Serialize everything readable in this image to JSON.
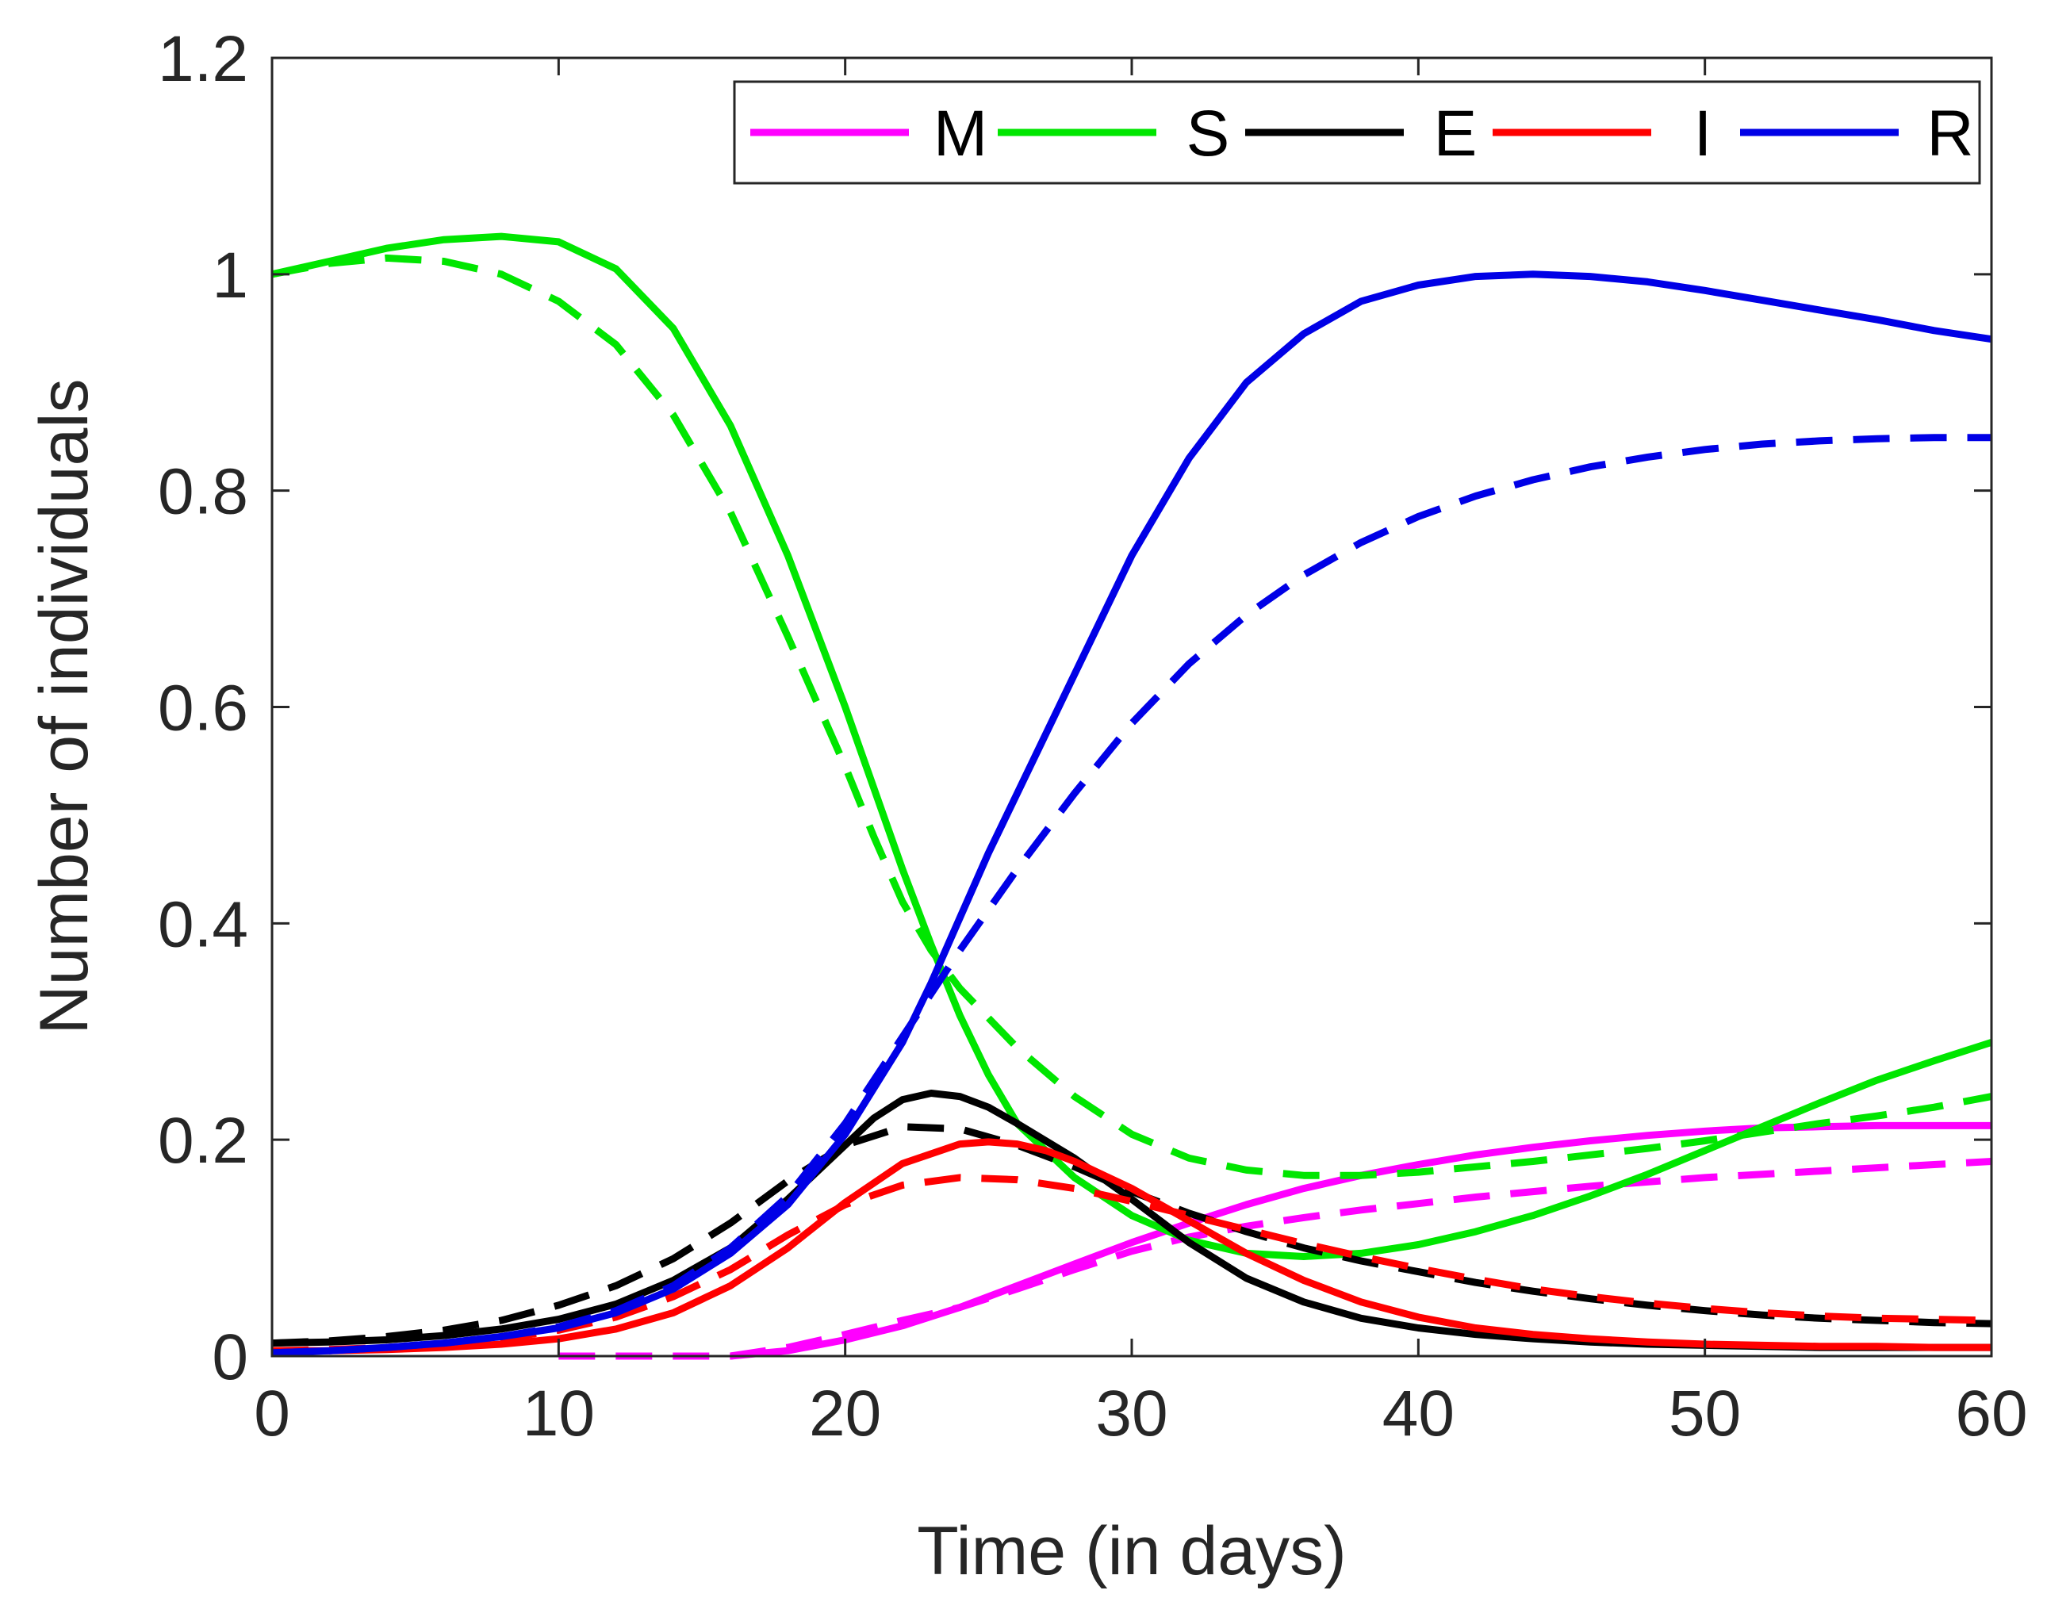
{
  "chart_data": {
    "type": "line",
    "title": "",
    "xlabel": "Time (in days)",
    "ylabel": "Number of individuals",
    "xlim": [
      0,
      60
    ],
    "ylim": [
      0,
      1.2
    ],
    "xticks": [
      0,
      10,
      20,
      30,
      40,
      50,
      60
    ],
    "yticks": [
      0,
      0.2,
      0.4,
      0.6,
      0.8,
      1,
      1.2
    ],
    "xtick_labels": [
      "0",
      "10",
      "20",
      "30",
      "40",
      "50",
      "60"
    ],
    "ytick_labels": [
      "0",
      "0.2",
      "0.4",
      "0.6",
      "0.8",
      "1",
      "1.2"
    ],
    "grid": false,
    "legend_position": "top-right",
    "legend": [
      "M",
      "S",
      "E",
      "I",
      "R"
    ],
    "series": [
      {
        "name": "M",
        "style": "solid",
        "color": "#ff00ff",
        "x": [
          16,
          18,
          20,
          22,
          24,
          26,
          28,
          30,
          32,
          34,
          36,
          38,
          40,
          42,
          44,
          46,
          48,
          50,
          52,
          54,
          56,
          58,
          60
        ],
        "y": [
          0,
          0.005,
          0.015,
          0.028,
          0.045,
          0.065,
          0.085,
          0.105,
          0.123,
          0.14,
          0.155,
          0.167,
          0.177,
          0.186,
          0.193,
          0.199,
          0.204,
          0.208,
          0.211,
          0.212,
          0.213,
          0.213,
          0.213
        ]
      },
      {
        "name": "M",
        "style": "dashed",
        "color": "#ff00ff",
        "x": [
          10,
          12,
          14,
          16,
          18,
          20,
          22,
          24,
          26,
          28,
          30,
          32,
          34,
          36,
          38,
          40,
          42,
          44,
          46,
          48,
          50,
          52,
          54,
          56,
          58,
          60
        ],
        "y": [
          0,
          0,
          0,
          0,
          0.008,
          0.02,
          0.033,
          0.045,
          0.062,
          0.08,
          0.097,
          0.11,
          0.12,
          0.128,
          0.135,
          0.141,
          0.147,
          0.152,
          0.157,
          0.161,
          0.165,
          0.168,
          0.171,
          0.174,
          0.177,
          0.18
        ]
      },
      {
        "name": "S",
        "style": "solid",
        "color": "#00e600",
        "x": [
          0,
          2,
          4,
          6,
          8,
          10,
          12,
          14,
          16,
          18,
          20,
          21,
          22,
          23,
          24,
          25,
          26,
          28,
          30,
          32,
          34,
          36,
          38,
          40,
          42,
          44,
          46,
          48,
          50,
          52,
          54,
          56,
          58,
          60
        ],
        "y": [
          1.0,
          1.012,
          1.024,
          1.032,
          1.035,
          1.03,
          1.005,
          0.95,
          0.86,
          0.74,
          0.6,
          0.525,
          0.45,
          0.38,
          0.315,
          0.26,
          0.215,
          0.165,
          0.13,
          0.107,
          0.095,
          0.092,
          0.095,
          0.103,
          0.115,
          0.13,
          0.148,
          0.168,
          0.19,
          0.212,
          0.234,
          0.255,
          0.273,
          0.29
        ]
      },
      {
        "name": "S",
        "style": "dashed",
        "color": "#00e600",
        "x": [
          0,
          2,
          4,
          6,
          8,
          10,
          12,
          14,
          16,
          18,
          20,
          21,
          22,
          23,
          24,
          26,
          28,
          30,
          32,
          34,
          36,
          38,
          40,
          42,
          44,
          46,
          48,
          50,
          52,
          54,
          56,
          58,
          60
        ],
        "y": [
          1.0,
          1.01,
          1.015,
          1.012,
          1.0,
          0.975,
          0.935,
          0.87,
          0.78,
          0.665,
          0.545,
          0.48,
          0.42,
          0.375,
          0.34,
          0.285,
          0.24,
          0.205,
          0.183,
          0.172,
          0.167,
          0.167,
          0.17,
          0.175,
          0.18,
          0.186,
          0.192,
          0.199,
          0.207,
          0.215,
          0.222,
          0.23,
          0.24
        ]
      },
      {
        "name": "E",
        "style": "solid",
        "color": "#000000",
        "x": [
          0,
          2,
          4,
          6,
          8,
          10,
          12,
          14,
          16,
          18,
          20,
          21,
          22,
          23,
          24,
          25,
          26,
          28,
          30,
          32,
          34,
          36,
          38,
          40,
          42,
          44,
          46,
          48,
          50,
          52,
          54,
          56,
          58,
          60
        ],
        "y": [
          0.012,
          0.013,
          0.015,
          0.019,
          0.025,
          0.034,
          0.048,
          0.07,
          0.1,
          0.145,
          0.195,
          0.22,
          0.237,
          0.243,
          0.24,
          0.23,
          0.215,
          0.183,
          0.145,
          0.105,
          0.072,
          0.05,
          0.035,
          0.026,
          0.02,
          0.016,
          0.013,
          0.011,
          0.01,
          0.009,
          0.008,
          0.008,
          0.008,
          0.008
        ]
      },
      {
        "name": "E",
        "style": "dashed",
        "color": "#000000",
        "x": [
          0,
          2,
          4,
          6,
          8,
          10,
          12,
          14,
          16,
          18,
          20,
          22,
          24,
          26,
          28,
          30,
          32,
          34,
          36,
          38,
          40,
          42,
          44,
          46,
          48,
          50,
          52,
          54,
          56,
          58,
          60
        ],
        "y": [
          0.012,
          0.014,
          0.018,
          0.024,
          0.033,
          0.047,
          0.065,
          0.09,
          0.123,
          0.162,
          0.195,
          0.212,
          0.21,
          0.195,
          0.175,
          0.152,
          0.132,
          0.115,
          0.1,
          0.088,
          0.078,
          0.068,
          0.06,
          0.053,
          0.047,
          0.042,
          0.038,
          0.035,
          0.033,
          0.031,
          0.03
        ]
      },
      {
        "name": "I",
        "style": "solid",
        "color": "#ff0000",
        "x": [
          0,
          2,
          4,
          6,
          8,
          10,
          12,
          14,
          16,
          18,
          20,
          22,
          24,
          25,
          26,
          27,
          28,
          30,
          32,
          34,
          36,
          38,
          40,
          42,
          44,
          46,
          48,
          50,
          52,
          54,
          56,
          58,
          60
        ],
        "y": [
          0.005,
          0.005,
          0.006,
          0.008,
          0.011,
          0.016,
          0.025,
          0.04,
          0.065,
          0.1,
          0.142,
          0.178,
          0.196,
          0.198,
          0.196,
          0.19,
          0.18,
          0.155,
          0.125,
          0.095,
          0.07,
          0.05,
          0.036,
          0.026,
          0.02,
          0.016,
          0.013,
          0.011,
          0.01,
          0.009,
          0.009,
          0.008,
          0.008
        ]
      },
      {
        "name": "I",
        "style": "dashed",
        "color": "#ff0000",
        "x": [
          0,
          2,
          4,
          6,
          8,
          10,
          12,
          14,
          16,
          18,
          20,
          22,
          24,
          26,
          28,
          30,
          32,
          34,
          36,
          38,
          40,
          42,
          44,
          46,
          48,
          50,
          52,
          54,
          56,
          58,
          60
        ],
        "y": [
          0.005,
          0.006,
          0.008,
          0.011,
          0.016,
          0.024,
          0.036,
          0.055,
          0.08,
          0.112,
          0.14,
          0.158,
          0.165,
          0.163,
          0.155,
          0.143,
          0.13,
          0.117,
          0.104,
          0.092,
          0.081,
          0.071,
          0.062,
          0.055,
          0.049,
          0.044,
          0.04,
          0.037,
          0.035,
          0.034,
          0.033
        ]
      },
      {
        "name": "R",
        "style": "solid",
        "color": "#0000e6",
        "x": [
          0,
          2,
          4,
          6,
          8,
          10,
          12,
          14,
          16,
          18,
          20,
          22,
          23,
          24,
          25,
          26,
          28,
          30,
          32,
          34,
          36,
          38,
          40,
          42,
          44,
          46,
          48,
          50,
          52,
          54,
          56,
          58,
          60
        ],
        "y": [
          0.003,
          0.005,
          0.008,
          0.012,
          0.018,
          0.026,
          0.04,
          0.062,
          0.095,
          0.14,
          0.205,
          0.29,
          0.345,
          0.405,
          0.465,
          0.52,
          0.63,
          0.74,
          0.83,
          0.9,
          0.945,
          0.975,
          0.99,
          0.998,
          1.0,
          0.998,
          0.993,
          0.985,
          0.976,
          0.967,
          0.958,
          0.948,
          0.94
        ]
      },
      {
        "name": "R",
        "style": "dashed",
        "color": "#0000e6",
        "x": [
          0,
          2,
          4,
          6,
          8,
          10,
          12,
          14,
          16,
          18,
          20,
          22,
          24,
          26,
          28,
          30,
          32,
          34,
          36,
          38,
          40,
          42,
          44,
          46,
          48,
          50,
          52,
          54,
          56,
          58,
          60
        ],
        "y": [
          0.003,
          0.005,
          0.008,
          0.012,
          0.018,
          0.027,
          0.042,
          0.065,
          0.1,
          0.148,
          0.215,
          0.295,
          0.375,
          0.45,
          0.52,
          0.585,
          0.64,
          0.685,
          0.722,
          0.752,
          0.776,
          0.795,
          0.81,
          0.822,
          0.831,
          0.838,
          0.843,
          0.846,
          0.848,
          0.849,
          0.849
        ]
      }
    ]
  }
}
